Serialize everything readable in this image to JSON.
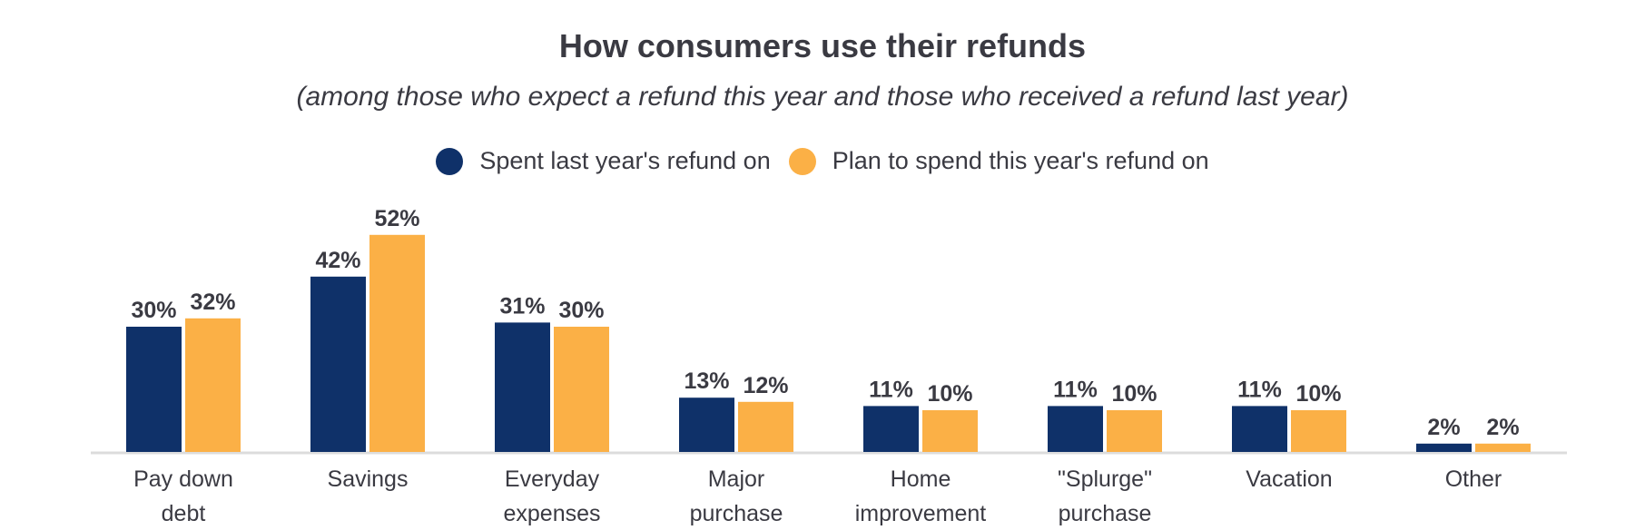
{
  "chart_data": {
    "type": "bar",
    "title": "How consumers use their refunds",
    "subtitle": "(among those who expect a refund this year and those who received a refund last year)",
    "categories": [
      [
        "Pay down",
        "debt"
      ],
      [
        "Savings"
      ],
      [
        "Everyday",
        "expenses"
      ],
      [
        "Major",
        "purchase"
      ],
      [
        "Home",
        "improvement"
      ],
      [
        "\"Splurge\"",
        "purchase"
      ],
      [
        "Vacation"
      ],
      [
        "Other"
      ]
    ],
    "series": [
      {
        "name": "Spent last year's refund on",
        "color": "#0f3169",
        "values": [
          30,
          42,
          31,
          13,
          11,
          11,
          11,
          2
        ]
      },
      {
        "name": "Plan to spend this year's refund on",
        "color": "#fbb046",
        "values": [
          32,
          52,
          30,
          12,
          10,
          10,
          10,
          2
        ]
      }
    ],
    "value_suffix": "%",
    "ylim": [
      0,
      55
    ],
    "grid": false,
    "legend_placement": "top"
  }
}
